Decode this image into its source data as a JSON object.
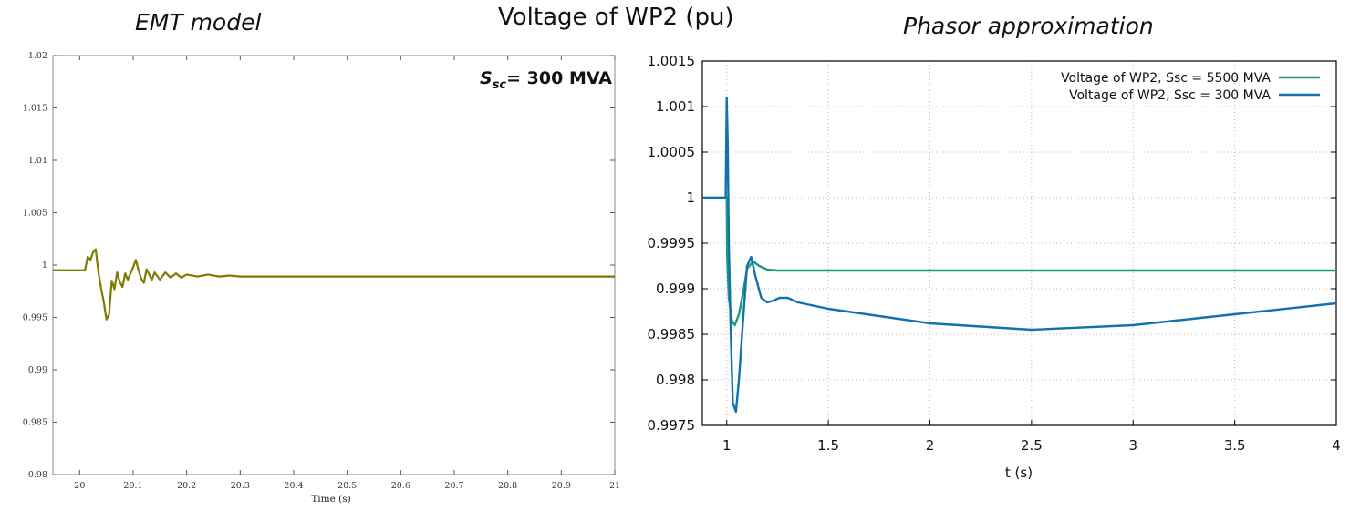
{
  "titles": {
    "left": "EMT model",
    "center": "Voltage of WP2 (pu)",
    "right": "Phasor approximation"
  },
  "chart_data": [
    {
      "type": "line",
      "title": "EMT model",
      "xlabel": "Time (s)",
      "ylabel": "",
      "xlim": [
        19.95,
        21.0
      ],
      "ylim": [
        0.98,
        1.02
      ],
      "xticks": [
        20,
        20.1,
        20.2,
        20.3,
        20.4,
        20.5,
        20.6,
        20.7,
        20.8,
        20.9,
        21
      ],
      "xtick_labels": [
        "20",
        "20.1",
        "20.2",
        "20.3",
        "20.4",
        "20.5",
        "20.6",
        "20.7",
        "20.8",
        "20.9",
        "21"
      ],
      "yticks": [
        0.98,
        0.985,
        0.99,
        0.995,
        1,
        1.005,
        1.01,
        1.015,
        1.02
      ],
      "ytick_labels": [
        "0.98",
        "0.985",
        "0.99",
        "0.995",
        "1",
        "1.005",
        "1.01",
        "1.015",
        "1.02"
      ],
      "grid": false,
      "annotation": {
        "main": "S",
        "sub": "sc",
        "rest": "= 300 MVA"
      },
      "series": [
        {
          "color": "#7f7a00",
          "x": [
            19.95,
            20.0,
            20.01,
            20.015,
            20.02,
            20.025,
            20.03,
            20.035,
            20.04,
            20.045,
            20.05,
            20.055,
            20.06,
            20.065,
            20.07,
            20.075,
            20.08,
            20.085,
            20.09,
            20.095,
            20.1,
            20.105,
            20.11,
            20.115,
            20.12,
            20.125,
            20.13,
            20.135,
            20.14,
            20.15,
            20.16,
            20.17,
            20.18,
            20.19,
            20.2,
            20.22,
            20.24,
            20.26,
            20.28,
            20.3,
            20.35,
            20.4,
            20.5,
            20.6,
            20.8,
            21.0
          ],
          "y": [
            0.9995,
            0.9995,
            0.9995,
            1.0008,
            1.0005,
            1.0012,
            1.0015,
            0.9993,
            0.9978,
            0.9965,
            0.9948,
            0.9953,
            0.9985,
            0.9977,
            0.9993,
            0.9984,
            0.9979,
            0.9992,
            0.9986,
            0.9992,
            0.9998,
            1.0005,
            0.9995,
            0.9987,
            0.9983,
            0.9996,
            0.9991,
            0.9986,
            0.9993,
            0.9986,
            0.9993,
            0.9988,
            0.9992,
            0.9988,
            0.9991,
            0.9989,
            0.9991,
            0.9989,
            0.999,
            0.9989,
            0.9989,
            0.9989,
            0.9989,
            0.9989,
            0.9989,
            0.9989
          ]
        }
      ]
    },
    {
      "type": "line",
      "title": "Phasor approximation",
      "xlabel": "t (s)",
      "ylabel": "",
      "xlim": [
        0.88,
        4.0
      ],
      "ylim": [
        0.9975,
        1.0015
      ],
      "xticks": [
        1,
        1.5,
        2,
        2.5,
        3,
        3.5,
        4
      ],
      "xtick_labels": [
        "1",
        "1.5",
        "2",
        "2.5",
        "3",
        "3.5",
        "4"
      ],
      "yticks": [
        0.9975,
        0.998,
        0.9985,
        0.999,
        0.9995,
        1,
        1.0005,
        1.001,
        1.0015
      ],
      "ytick_labels": [
        "0.9975",
        "0.998",
        "0.9985",
        "0.999",
        "0.9995",
        "1",
        "1.0005",
        "1.001",
        "1.0015"
      ],
      "grid": true,
      "legend_position": "top-right",
      "series": [
        {
          "name": "Voltage of WP2, Ssc = 5500 MVA",
          "color": "#1a9e73",
          "x": [
            0.88,
            1.0,
            1.002,
            1.01,
            1.025,
            1.04,
            1.06,
            1.08,
            1.1,
            1.13,
            1.16,
            1.2,
            1.25,
            1.35,
            1.5,
            2.0,
            3.0,
            4.0
          ],
          "y": [
            1.0,
            1.0,
            0.99935,
            0.9989,
            0.99865,
            0.9986,
            0.99872,
            0.99895,
            0.99922,
            0.9993,
            0.99925,
            0.99921,
            0.9992,
            0.9992,
            0.9992,
            0.9992,
            0.9992,
            0.9992
          ]
        },
        {
          "name": "Voltage of WP2, Ssc = 300 MVA",
          "color": "#1272b0",
          "x": [
            0.88,
            0.99,
            0.995,
            1.0,
            1.005,
            1.01,
            1.02,
            1.03,
            1.045,
            1.06,
            1.08,
            1.1,
            1.12,
            1.14,
            1.17,
            1.2,
            1.23,
            1.26,
            1.3,
            1.35,
            1.5,
            2.0,
            2.5,
            3.0,
            3.5,
            4.0
          ],
          "y": [
            1.0,
            1.0,
            1.0,
            1.0011,
            1.0006,
            0.9995,
            0.9985,
            0.99775,
            0.99765,
            0.998,
            0.99865,
            0.99925,
            0.99935,
            0.99915,
            0.9989,
            0.99885,
            0.99887,
            0.9989,
            0.9989,
            0.99885,
            0.99878,
            0.99862,
            0.99855,
            0.9986,
            0.99872,
            0.99884
          ]
        }
      ]
    }
  ]
}
